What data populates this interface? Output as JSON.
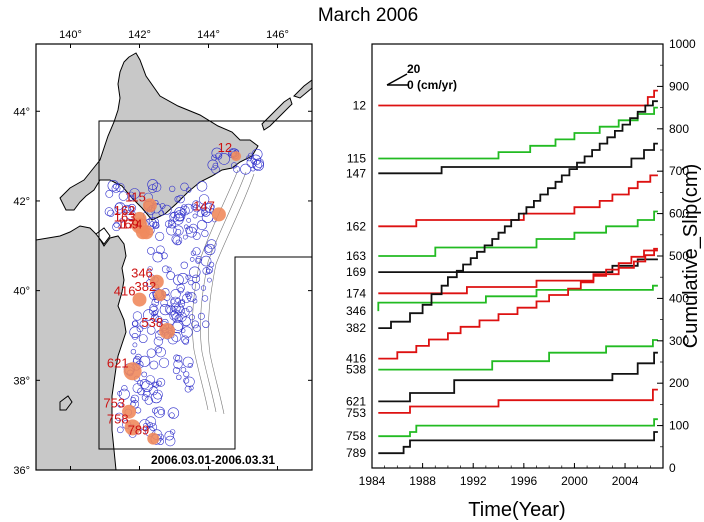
{
  "title": "March 2006",
  "map": {
    "date_range": "2006.03.01-2006.03.31",
    "lon_ticks": [
      "140°",
      "142°",
      "144°",
      "146°"
    ],
    "lat_ticks": [
      "44°",
      "42°",
      "40°",
      "38°",
      "36°"
    ],
    "land_color": "#c8c8c8",
    "quake_color": "#3333cc",
    "site_color": "#f08a5d",
    "site_labels": [
      {
        "label": "12",
        "lon": 144.8,
        "lat": 43.0
      },
      {
        "label": "115",
        "lon": 142.3,
        "lat": 41.9
      },
      {
        "label": "147",
        "lon": 144.3,
        "lat": 41.7
      },
      {
        "label": "162",
        "lon": 142.0,
        "lat": 41.6
      },
      {
        "label": "163",
        "lon": 142.0,
        "lat": 41.45
      },
      {
        "label": "169",
        "lon": 142.1,
        "lat": 41.3
      },
      {
        "label": "174",
        "lon": 142.2,
        "lat": 41.3
      },
      {
        "label": "346",
        "lon": 142.5,
        "lat": 40.2
      },
      {
        "label": "382",
        "lon": 142.6,
        "lat": 39.9
      },
      {
        "label": "416",
        "lon": 142.0,
        "lat": 39.8
      },
      {
        "label": "538",
        "lon": 142.8,
        "lat": 39.1
      },
      {
        "label": "621",
        "lon": 141.8,
        "lat": 38.2
      },
      {
        "label": "753",
        "lon": 141.7,
        "lat": 37.3
      },
      {
        "label": "758",
        "lon": 141.8,
        "lat": 36.95
      },
      {
        "label": "789",
        "lon": 142.4,
        "lat": 36.7
      }
    ]
  },
  "chart_data": {
    "type": "line",
    "xlabel": "Time(Year)",
    "ylabel": "Cumulative_Slip(cm)",
    "xlim": [
      1984,
      2007
    ],
    "ylim": [
      0,
      1000
    ],
    "x_ticks": [
      1984,
      1988,
      1992,
      1996,
      2000,
      2004
    ],
    "y_ticks": [
      0,
      100,
      200,
      300,
      400,
      500,
      600,
      700,
      800,
      900,
      1000
    ],
    "scale_arrow": {
      "top": "20",
      "bottom": "0 (cm/yr)"
    },
    "series": [
      {
        "name": "12",
        "color": "#dd1111",
        "base": 855,
        "steps": [
          [
            2005.8,
            20
          ],
          [
            2006.3,
            15
          ]
        ]
      },
      {
        "name": "115",
        "color": "#22bb22",
        "base": 730,
        "steps": [
          [
            1994.0,
            15
          ],
          [
            1996.5,
            15
          ],
          [
            1998.5,
            15
          ],
          [
            2000.0,
            15
          ],
          [
            2002.0,
            15
          ],
          [
            2003.5,
            15
          ],
          [
            2005.0,
            15
          ],
          [
            2006.3,
            15
          ]
        ]
      },
      {
        "name": "147",
        "color": "#111111",
        "base": 695,
        "steps": [
          [
            1989.5,
            15
          ],
          [
            2004.5,
            20
          ],
          [
            2005.5,
            20
          ],
          [
            2006.3,
            15
          ]
        ]
      },
      {
        "name": "162",
        "color": "#dd1111",
        "base": 570,
        "steps": [
          [
            1987.5,
            15
          ],
          [
            1996.0,
            15
          ],
          [
            2000.0,
            15
          ],
          [
            2002.0,
            15
          ],
          [
            2003.0,
            15
          ],
          [
            2004.3,
            15
          ],
          [
            2005.0,
            15
          ],
          [
            2006.0,
            15
          ]
        ]
      },
      {
        "name": "163",
        "color": "#22bb22",
        "base": 500,
        "steps": [
          [
            1989.0,
            20
          ],
          [
            1997.0,
            20
          ],
          [
            2000.0,
            15
          ],
          [
            2002.5,
            15
          ],
          [
            2005.0,
            15
          ],
          [
            2006.3,
            20
          ]
        ]
      },
      {
        "name": "169",
        "color": "#111111",
        "base": 462,
        "steps": [
          [
            2003.0,
            15
          ],
          [
            2005.0,
            15
          ]
        ]
      },
      {
        "name": "174",
        "color": "#dd1111",
        "base": 412,
        "steps": [
          [
            1991.5,
            15
          ],
          [
            1997.0,
            15
          ],
          [
            2001.5,
            15
          ],
          [
            2003.5,
            15
          ],
          [
            2004.7,
            15
          ],
          [
            2005.6,
            15
          ],
          [
            2006.3,
            15
          ]
        ]
      },
      {
        "name": "346",
        "color": "#22bb22",
        "base": 370,
        "steps": [
          [
            1984.5,
            20
          ],
          [
            1993.0,
            15
          ],
          [
            1997.0,
            15
          ],
          [
            2006.2,
            10
          ]
        ]
      },
      {
        "name": "382",
        "color": "#111111",
        "base": 330,
        "steps": [
          [
            1985.5,
            15
          ],
          [
            1987.0,
            20
          ],
          [
            1988.0,
            20
          ],
          [
            1988.7,
            25
          ],
          [
            1989.5,
            20
          ],
          [
            1990.0,
            20
          ],
          [
            1990.7,
            15
          ],
          [
            1991.2,
            15
          ],
          [
            1991.8,
            15
          ],
          [
            1992.3,
            15
          ],
          [
            1992.9,
            15
          ],
          [
            1993.5,
            15
          ],
          [
            1994.0,
            15
          ],
          [
            1994.5,
            15
          ],
          [
            1995.0,
            15
          ],
          [
            1995.6,
            15
          ],
          [
            1996.2,
            15
          ],
          [
            1996.8,
            15
          ],
          [
            1997.3,
            15
          ],
          [
            1997.9,
            15
          ],
          [
            1998.5,
            15
          ],
          [
            1999.0,
            15
          ],
          [
            1999.6,
            15
          ],
          [
            2000.2,
            15
          ],
          [
            2000.8,
            15
          ],
          [
            2001.4,
            15
          ],
          [
            2002.0,
            15
          ],
          [
            2002.6,
            15
          ],
          [
            2003.2,
            15
          ],
          [
            2003.8,
            15
          ],
          [
            2004.4,
            15
          ],
          [
            2005.0,
            15
          ],
          [
            2005.6,
            15
          ],
          [
            2006.2,
            10
          ]
        ]
      },
      {
        "name": "416",
        "color": "#dd1111",
        "base": 258,
        "steps": [
          [
            1986.0,
            15
          ],
          [
            1987.5,
            15
          ],
          [
            1988.5,
            15
          ],
          [
            1990.0,
            15
          ],
          [
            1991.0,
            15
          ],
          [
            1992.5,
            15
          ],
          [
            1994.0,
            15
          ],
          [
            1995.5,
            15
          ],
          [
            1997.0,
            15
          ],
          [
            1998.0,
            15
          ],
          [
            1999.5,
            15
          ],
          [
            2000.5,
            15
          ],
          [
            2001.5,
            15
          ],
          [
            2002.5,
            15
          ],
          [
            2003.5,
            15
          ],
          [
            2004.5,
            15
          ],
          [
            2005.5,
            15
          ]
        ]
      },
      {
        "name": "538",
        "color": "#22bb22",
        "base": 232,
        "steps": [
          [
            1993.5,
            20
          ],
          [
            1998.0,
            20
          ],
          [
            2002.5,
            15
          ],
          [
            2006.2,
            15
          ]
        ]
      },
      {
        "name": "621",
        "color": "#111111",
        "base": 157,
        "steps": [
          [
            1987.0,
            20
          ],
          [
            1990.5,
            30
          ],
          [
            2003.0,
            15
          ],
          [
            2005.0,
            25
          ],
          [
            2006.3,
            25
          ]
        ]
      },
      {
        "name": "753",
        "color": "#dd1111",
        "base": 130,
        "steps": [
          [
            1987.0,
            15
          ],
          [
            1994.0,
            15
          ],
          [
            2006.2,
            25
          ]
        ]
      },
      {
        "name": "758",
        "color": "#22bb22",
        "base": 75,
        "steps": [
          [
            1987.0,
            10
          ],
          [
            1987.5,
            15
          ],
          [
            2006.3,
            15
          ]
        ]
      },
      {
        "name": "789",
        "color": "#111111",
        "base": 35,
        "steps": [
          [
            1986.5,
            15
          ],
          [
            1987.0,
            15
          ],
          [
            2006.3,
            20
          ]
        ]
      }
    ]
  }
}
